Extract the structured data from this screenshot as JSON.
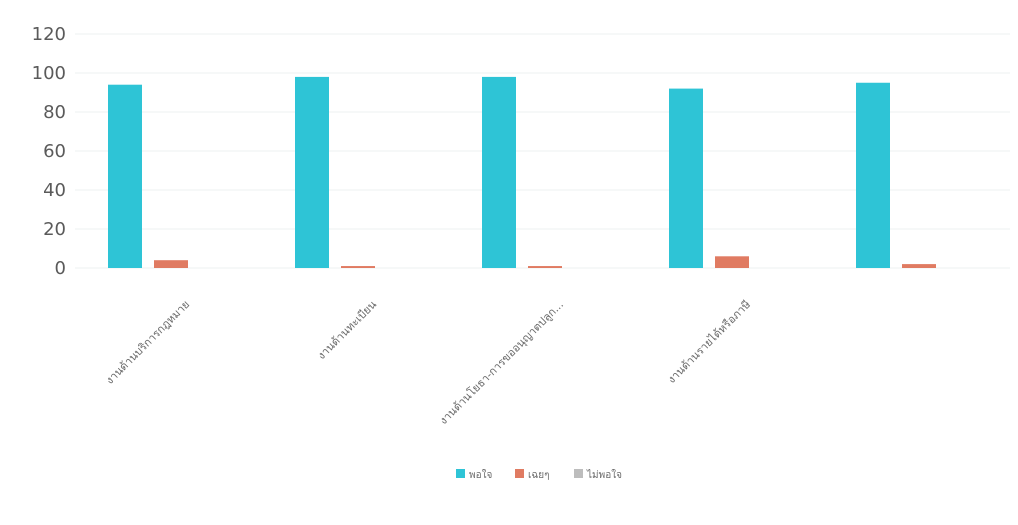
{
  "chart_data": {
    "type": "bar",
    "title": "",
    "xlabel": "",
    "ylabel": "",
    "ylim": [
      0,
      120
    ],
    "yticks": [
      0,
      20,
      40,
      60,
      80,
      100,
      120
    ],
    "grid": true,
    "legend_position": "bottom",
    "categories": [
      "งานด้านบริการกฎหมาย",
      "งานด้านทะเบียน",
      "งานด้านโยธา-การขออนุญาตปลูก...",
      "งานด้านรายได้หรือภาษี",
      ""
    ],
    "series": [
      {
        "name": "พอใจ",
        "color": "#2ec4d6",
        "values": [
          94,
          98,
          98,
          92,
          95
        ]
      },
      {
        "name": "เฉยๆ",
        "color": "#e07b62",
        "values": [
          4,
          1,
          1,
          6,
          2
        ]
      },
      {
        "name": "ไม่พอใจ",
        "color": "#bdbdbd",
        "values": [
          0,
          0,
          0,
          0,
          0
        ]
      }
    ]
  }
}
